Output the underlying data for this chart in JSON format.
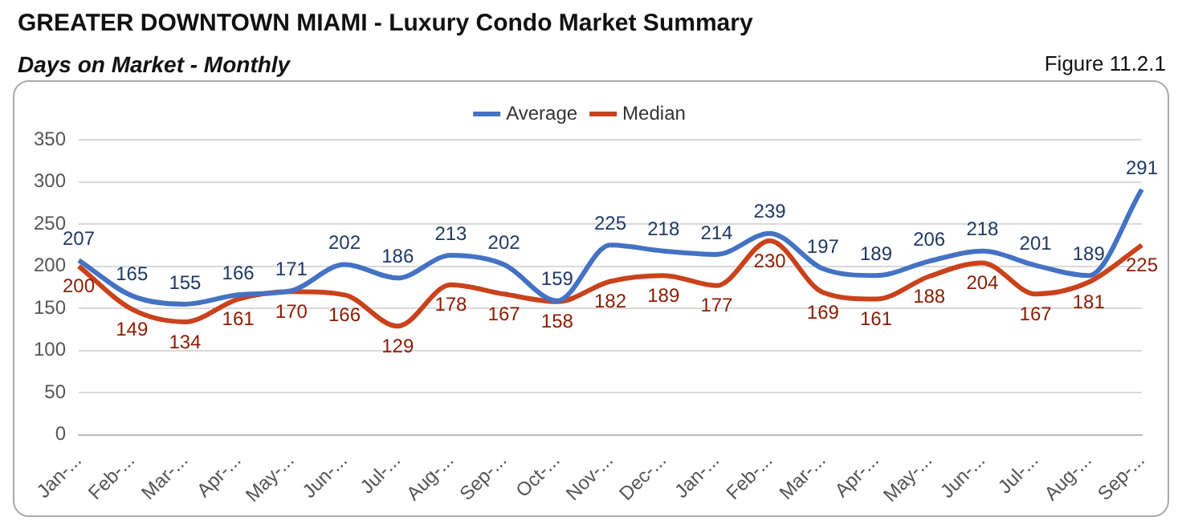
{
  "chart_data": {
    "type": "line",
    "title": "GREATER DOWNTOWN MIAMI - Luxury Condo Market Summary",
    "subtitle": "Days on Market - Monthly",
    "annotations": [
      "Figure 11.2.1"
    ],
    "categories": [
      "Jan-...",
      "Feb-...",
      "Mar-...",
      "Apr-...",
      "May-...",
      "Jun-...",
      "Jul-...",
      "Aug-...",
      "Sep-...",
      "Oct-...",
      "Nov-...",
      "Dec-...",
      "Jan-...",
      "Feb-...",
      "Mar-...",
      "Apr-...",
      "May-...",
      "Jun-...",
      "Jul-...",
      "Aug-...",
      "Sep-..."
    ],
    "series": [
      {
        "name": "Average",
        "color": "#4472c4",
        "values": [
          207,
          165,
          155,
          166,
          171,
          202,
          186,
          213,
          202,
          159,
          225,
          218,
          214,
          239,
          197,
          189,
          206,
          218,
          201,
          189,
          291
        ]
      },
      {
        "name": "Median",
        "color": "#c9421c",
        "values": [
          200,
          149,
          134,
          161,
          170,
          166,
          129,
          178,
          167,
          158,
          182,
          189,
          177,
          230,
          169,
          161,
          188,
          204,
          167,
          181,
          225
        ]
      }
    ],
    "ylim": [
      0,
      350
    ],
    "yticks": [
      0,
      50,
      100,
      150,
      200,
      250,
      300,
      350
    ],
    "grid": "y",
    "legend": "top",
    "marker": "none",
    "line_style": "solid",
    "data_labels": true
  }
}
